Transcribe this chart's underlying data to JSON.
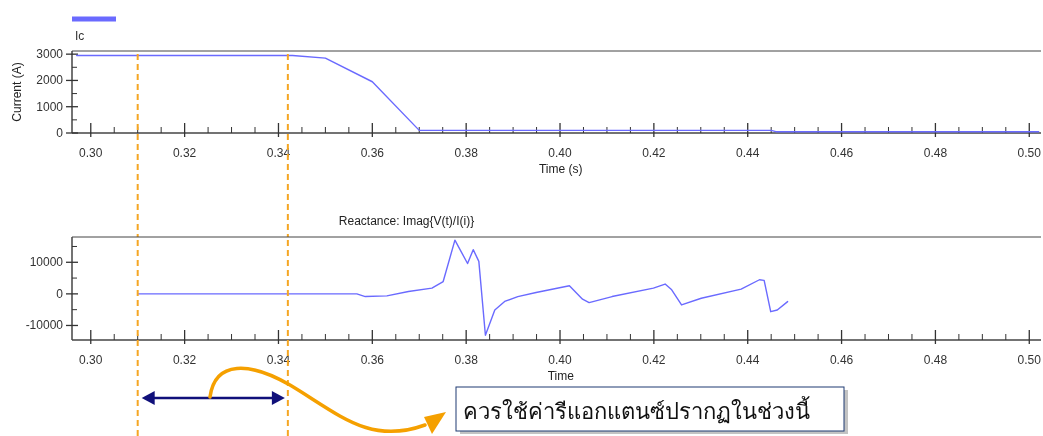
{
  "chart_data": [
    {
      "type": "line",
      "xlabel": "Time (s)",
      "ylabel": "Current (A)",
      "legend": "top left",
      "xlim": [
        0.296,
        0.5025
      ],
      "xticks": [
        {
          "value": 0.3,
          "label": "0.30"
        },
        {
          "value": 0.32,
          "label": "0.32"
        },
        {
          "value": 0.34,
          "label": "0.34"
        },
        {
          "value": 0.36,
          "label": "0.36"
        },
        {
          "value": 0.38,
          "label": "0.38"
        },
        {
          "value": 0.4,
          "label": "0.40"
        },
        {
          "value": 0.42,
          "label": "0.42"
        },
        {
          "value": 0.44,
          "label": "0.44"
        },
        {
          "value": 0.46,
          "label": "0.46"
        },
        {
          "value": 0.48,
          "label": "0.48"
        },
        {
          "value": 0.5,
          "label": "0.50"
        }
      ],
      "ylim": [
        0,
        3120
      ],
      "yticks": [
        0,
        1000,
        2000,
        3000
      ],
      "series": [
        {
          "name": "Ic",
          "color": "#6a6aff",
          "x": [
            0.297,
            0.343,
            0.35,
            0.36,
            0.37,
            0.445,
            0.446,
            0.502
          ],
          "values": [
            2950,
            2950,
            2850,
            1950,
            100,
            100,
            50,
            50
          ]
        }
      ],
      "ref_lines": [
        {
          "axis": "x",
          "value": 0.31,
          "color": "#f5a623",
          "line_style": "dashed"
        },
        {
          "axis": "x",
          "value": 0.342,
          "color": "#f5a623",
          "line_style": "dashed"
        }
      ]
    },
    {
      "type": "line",
      "title": "Reactance: Imag{V(t)/I(i)}",
      "xlabel": "Time",
      "xlim": [
        0.296,
        0.5025
      ],
      "xticks": [
        {
          "value": 0.3,
          "label": "0.30"
        },
        {
          "value": 0.32,
          "label": "0.32"
        },
        {
          "value": 0.34,
          "label": "0.34"
        },
        {
          "value": 0.36,
          "label": "0.36"
        },
        {
          "value": 0.38,
          "label": "0.38"
        },
        {
          "value": 0.4,
          "label": "0.40"
        },
        {
          "value": 0.42,
          "label": "0.42"
        },
        {
          "value": 0.44,
          "label": "0.44"
        },
        {
          "value": 0.46,
          "label": "0.46"
        },
        {
          "value": 0.48,
          "label": "0.48"
        },
        {
          "value": 0.5,
          "label": "0.50"
        }
      ],
      "ylim": [
        -14600,
        18000
      ],
      "yticks": [
        -10000,
        0,
        10000
      ],
      "series": [
        {
          "color": "#6a6aff",
          "x": [
            0.3101,
            0.3567,
            0.3585,
            0.3631,
            0.3677,
            0.3727,
            0.3751,
            0.3776,
            0.3803,
            0.3815,
            0.3827,
            0.3841,
            0.3861,
            0.3882,
            0.391,
            0.3949,
            0.402,
            0.4048,
            0.4062,
            0.4111,
            0.4199,
            0.4224,
            0.4238,
            0.4259,
            0.4301,
            0.4386,
            0.4425,
            0.4435,
            0.4449,
            0.4463,
            0.4485
          ],
          "values": [
            0,
            0,
            -850,
            -640,
            740,
            1800,
            3900,
            17000,
            9600,
            14000,
            10300,
            -13100,
            -5100,
            -2400,
            -850,
            430,
            2550,
            -1700,
            -2770,
            -850,
            1800,
            3100,
            1280,
            -3500,
            -1380,
            1500,
            4470,
            4260,
            -5640,
            -5100,
            -2450
          ]
        }
      ],
      "ref_lines": [
        {
          "axis": "x",
          "value": 0.31,
          "color": "#f5a623",
          "line_style": "dashed"
        },
        {
          "axis": "x",
          "value": 0.342,
          "color": "#f5a623",
          "line_style": "dashed"
        }
      ],
      "annotations": [
        "ควรใช้ค่ารีแอกแตนซ์ปรากฏในช่วงนี้"
      ]
    }
  ]
}
